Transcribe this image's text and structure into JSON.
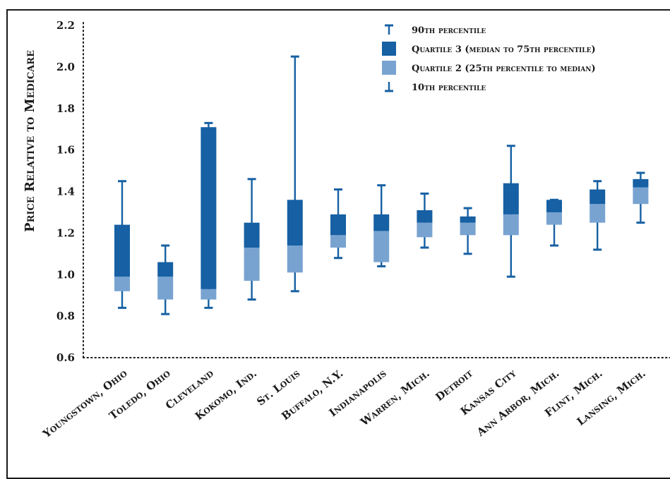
{
  "chart_data": {
    "type": "boxplot",
    "ylabel": "Price Relative to Medicare",
    "ylim": [
      0.6,
      2.2
    ],
    "yticks": [
      "0.6",
      "0.8",
      "1.0",
      "1.2",
      "1.4",
      "1.6",
      "1.8",
      "2.0",
      "2.2"
    ],
    "categories": [
      "Youngstown, Ohio",
      "Toledo, Ohio",
      "Cleveland",
      "Kokomo, Ind.",
      "St. Louis",
      "Buffalo, N.Y.",
      "Indianapolis",
      "Warren, Mich.",
      "Detroit",
      "Kansas City",
      "Ann Arbor, Mich.",
      "Flint, Mich.",
      "Lansing, Mich."
    ],
    "series": [
      {
        "name": "10th percentile",
        "values": [
          0.84,
          0.81,
          0.84,
          0.88,
          0.92,
          1.08,
          1.04,
          1.13,
          1.1,
          0.99,
          1.14,
          1.12,
          1.25
        ]
      },
      {
        "name": "Quartile 2 (25th percentile to median)",
        "lower": [
          0.92,
          0.88,
          0.88,
          0.97,
          1.01,
          1.13,
          1.06,
          1.18,
          1.19,
          1.19,
          1.24,
          1.25,
          1.34
        ],
        "upper": [
          0.99,
          0.99,
          0.93,
          1.13,
          1.14,
          1.19,
          1.21,
          1.25,
          1.25,
          1.29,
          1.3,
          1.34,
          1.42
        ]
      },
      {
        "name": "Quartile 3 (median to 75th percentile)",
        "lower": [
          0.99,
          0.99,
          0.93,
          1.13,
          1.14,
          1.19,
          1.21,
          1.25,
          1.25,
          1.29,
          1.3,
          1.34,
          1.42
        ],
        "upper": [
          1.24,
          1.06,
          1.71,
          1.25,
          1.36,
          1.29,
          1.29,
          1.31,
          1.28,
          1.44,
          1.36,
          1.41,
          1.46
        ]
      },
      {
        "name": "90th percentile",
        "values": [
          1.45,
          1.14,
          1.73,
          1.46,
          2.05,
          1.41,
          1.43,
          1.39,
          1.32,
          1.62,
          1.36,
          1.45,
          1.49
        ]
      }
    ],
    "legend": {
      "placement": "top-right",
      "items": [
        {
          "symbol": "cap-top",
          "label": "90th percentile"
        },
        {
          "symbol": "q3-box",
          "label": "Quartile 3 (median to 75th percentile)"
        },
        {
          "symbol": "q2-box",
          "label": "Quartile 2 (25th percentile to median)"
        },
        {
          "symbol": "cap-bottom",
          "label": "10th percentile"
        }
      ]
    },
    "colors": {
      "q3": "#1660a3",
      "q2": "#78a3d1",
      "whisker": "#1660a3",
      "axis": "#1a1a1a"
    },
    "grid": false
  }
}
